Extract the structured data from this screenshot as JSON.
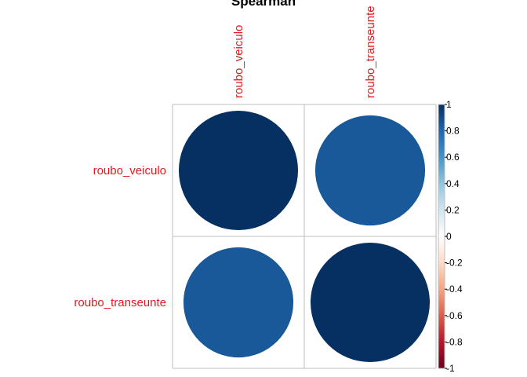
{
  "chart_data": {
    "type": "heatmap",
    "method": "circle",
    "title": "Spearman",
    "variables": [
      "roubo_veiculo",
      "roubo_transeunte"
    ],
    "matrix": [
      [
        1.0,
        0.85
      ],
      [
        0.85,
        1.0
      ]
    ],
    "colorbar": {
      "range": [
        -1,
        1
      ],
      "ticks": [
        "-1",
        "-0.8",
        "-0.6",
        "-0.4",
        "-0.2",
        "0",
        "0.2",
        "0.4",
        "0.6",
        "0.8",
        "1"
      ],
      "legend_position": "right"
    },
    "grid": true,
    "colors": {
      "label": "#e41a1c",
      "grid": "#bebebe",
      "high": "#053061",
      "low": "#67001f"
    }
  }
}
